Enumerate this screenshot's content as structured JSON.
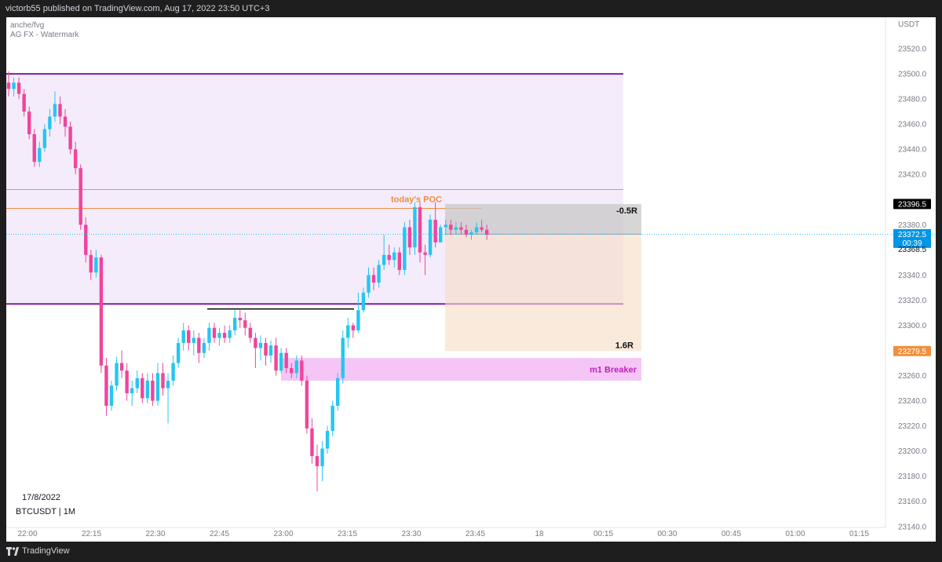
{
  "header": {
    "published_text": "victorb55 published on TradingView.com, Aug 17, 2022 23:50 UTC+3"
  },
  "footer": {
    "brand": "TradingView",
    "logo_icon": "tradingview-logo-icon"
  },
  "indicators": [
    "anche/fvg",
    "AG FX - Watermark"
  ],
  "watermark": {
    "date": "17/8/2022",
    "symbol": "BTCUSDT | 1M"
  },
  "colors": {
    "bull": "#26c6f0",
    "bear": "#f0449c",
    "zone_purple_line": "#7b1fa2",
    "poc": "#f08c3c",
    "breaker": "#e040fb",
    "price_badge": "#0096e6",
    "tp_badge": "#f0903c"
  },
  "chart_data": {
    "type": "candlestick",
    "symbol": "BTCUSDT",
    "interval": "1M",
    "currency": "USDT",
    "ylim": [
      23128,
      23545
    ],
    "x_ticks": [
      "22:00",
      "22:15",
      "22:30",
      "22:45",
      "23:00",
      "23:15",
      "23:30",
      "23:45",
      "18",
      "00:15",
      "00:30",
      "00:45",
      "01:00",
      "01:15"
    ],
    "y_ticks": [
      "23520.0",
      "23500.0",
      "23480.0",
      "23460.0",
      "23440.0",
      "23420.0",
      "23380.0",
      "23340.0",
      "23320.0",
      "23300.0",
      "23280.0",
      "23260.0",
      "23240.0",
      "23220.0",
      "23200.0",
      "23180.0",
      "23160.0",
      "23140.0"
    ],
    "price_labels": {
      "sl": "23396.5",
      "last": "23372.5",
      "countdown": "00:39",
      "low": "23368.5",
      "tp": "23279.5"
    },
    "annotations": {
      "poc_label": "today's POC",
      "risk_label": "-0.5R",
      "reward_label": "1.6R",
      "breaker_label": "m1 Breaker"
    },
    "levels": {
      "zone_top": 23500,
      "zone_mid": 23408,
      "zone_bottom": 23317,
      "poc": 23393,
      "black_line": 23313,
      "breaker_top": 23274,
      "breaker_bottom": 23256,
      "sl": 23396.5,
      "entry": 23372.5,
      "tp": 23279.5
    },
    "candles": [
      {
        "o": 23493,
        "h": 23502,
        "l": 23482,
        "c": 23488
      },
      {
        "o": 23488,
        "h": 23497,
        "l": 23482,
        "c": 23493
      },
      {
        "o": 23493,
        "h": 23497,
        "l": 23480,
        "c": 23484
      },
      {
        "o": 23484,
        "h": 23488,
        "l": 23466,
        "c": 23470
      },
      {
        "o": 23470,
        "h": 23474,
        "l": 23448,
        "c": 23452
      },
      {
        "o": 23452,
        "h": 23456,
        "l": 23426,
        "c": 23430
      },
      {
        "o": 23430,
        "h": 23446,
        "l": 23426,
        "c": 23441
      },
      {
        "o": 23441,
        "h": 23460,
        "l": 23438,
        "c": 23456
      },
      {
        "o": 23456,
        "h": 23472,
        "l": 23450,
        "c": 23466
      },
      {
        "o": 23466,
        "h": 23486,
        "l": 23462,
        "c": 23476
      },
      {
        "o": 23476,
        "h": 23482,
        "l": 23460,
        "c": 23466
      },
      {
        "o": 23466,
        "h": 23472,
        "l": 23450,
        "c": 23458
      },
      {
        "o": 23458,
        "h": 23462,
        "l": 23436,
        "c": 23440
      },
      {
        "o": 23440,
        "h": 23446,
        "l": 23420,
        "c": 23425
      },
      {
        "o": 23425,
        "h": 23428,
        "l": 23376,
        "c": 23380
      },
      {
        "o": 23380,
        "h": 23386,
        "l": 23350,
        "c": 23356
      },
      {
        "o": 23356,
        "h": 23360,
        "l": 23336,
        "c": 23342
      },
      {
        "o": 23342,
        "h": 23360,
        "l": 23338,
        "c": 23354
      },
      {
        "o": 23354,
        "h": 23356,
        "l": 23262,
        "c": 23268
      },
      {
        "o": 23268,
        "h": 23274,
        "l": 23228,
        "c": 23236
      },
      {
        "o": 23236,
        "h": 23256,
        "l": 23232,
        "c": 23252
      },
      {
        "o": 23252,
        "h": 23275,
        "l": 23248,
        "c": 23270
      },
      {
        "o": 23270,
        "h": 23280,
        "l": 23258,
        "c": 23264
      },
      {
        "o": 23264,
        "h": 23270,
        "l": 23240,
        "c": 23246
      },
      {
        "o": 23246,
        "h": 23256,
        "l": 23236,
        "c": 23250
      },
      {
        "o": 23250,
        "h": 23264,
        "l": 23246,
        "c": 23258
      },
      {
        "o": 23258,
        "h": 23262,
        "l": 23238,
        "c": 23242
      },
      {
        "o": 23242,
        "h": 23262,
        "l": 23238,
        "c": 23256
      },
      {
        "o": 23256,
        "h": 23262,
        "l": 23236,
        "c": 23240
      },
      {
        "o": 23240,
        "h": 23270,
        "l": 23236,
        "c": 23262
      },
      {
        "o": 23262,
        "h": 23270,
        "l": 23244,
        "c": 23250
      },
      {
        "o": 23250,
        "h": 23262,
        "l": 23222,
        "c": 23256
      },
      {
        "o": 23256,
        "h": 23276,
        "l": 23252,
        "c": 23270
      },
      {
        "o": 23270,
        "h": 23290,
        "l": 23266,
        "c": 23286
      },
      {
        "o": 23286,
        "h": 23302,
        "l": 23280,
        "c": 23296
      },
      {
        "o": 23296,
        "h": 23300,
        "l": 23280,
        "c": 23286
      },
      {
        "o": 23286,
        "h": 23296,
        "l": 23276,
        "c": 23290
      },
      {
        "o": 23290,
        "h": 23294,
        "l": 23270,
        "c": 23278
      },
      {
        "o": 23278,
        "h": 23290,
        "l": 23274,
        "c": 23286
      },
      {
        "o": 23286,
        "h": 23302,
        "l": 23280,
        "c": 23298
      },
      {
        "o": 23298,
        "h": 23302,
        "l": 23286,
        "c": 23290
      },
      {
        "o": 23290,
        "h": 23298,
        "l": 23284,
        "c": 23294
      },
      {
        "o": 23294,
        "h": 23300,
        "l": 23286,
        "c": 23290
      },
      {
        "o": 23290,
        "h": 23300,
        "l": 23286,
        "c": 23296
      },
      {
        "o": 23296,
        "h": 23312,
        "l": 23292,
        "c": 23306
      },
      {
        "o": 23306,
        "h": 23312,
        "l": 23298,
        "c": 23304
      },
      {
        "o": 23304,
        "h": 23310,
        "l": 23292,
        "c": 23298
      },
      {
        "o": 23298,
        "h": 23302,
        "l": 23286,
        "c": 23290
      },
      {
        "o": 23290,
        "h": 23294,
        "l": 23266,
        "c": 23282
      },
      {
        "o": 23282,
        "h": 23292,
        "l": 23272,
        "c": 23286
      },
      {
        "o": 23286,
        "h": 23290,
        "l": 23268,
        "c": 23276
      },
      {
        "o": 23276,
        "h": 23288,
        "l": 23270,
        "c": 23284
      },
      {
        "o": 23284,
        "h": 23290,
        "l": 23260,
        "c": 23264
      },
      {
        "o": 23264,
        "h": 23282,
        "l": 23262,
        "c": 23278
      },
      {
        "o": 23278,
        "h": 23282,
        "l": 23262,
        "c": 23266
      },
      {
        "o": 23266,
        "h": 23270,
        "l": 23258,
        "c": 23262
      },
      {
        "o": 23262,
        "h": 23276,
        "l": 23258,
        "c": 23272
      },
      {
        "o": 23272,
        "h": 23276,
        "l": 23252,
        "c": 23256
      },
      {
        "o": 23256,
        "h": 23260,
        "l": 23214,
        "c": 23218
      },
      {
        "o": 23218,
        "h": 23226,
        "l": 23190,
        "c": 23196
      },
      {
        "o": 23196,
        "h": 23205,
        "l": 23168,
        "c": 23188
      },
      {
        "o": 23188,
        "h": 23208,
        "l": 23176,
        "c": 23202
      },
      {
        "o": 23202,
        "h": 23220,
        "l": 23198,
        "c": 23216
      },
      {
        "o": 23216,
        "h": 23240,
        "l": 23212,
        "c": 23236
      },
      {
        "o": 23236,
        "h": 23262,
        "l": 23232,
        "c": 23258
      },
      {
        "o": 23258,
        "h": 23296,
        "l": 23254,
        "c": 23290
      },
      {
        "o": 23290,
        "h": 23306,
        "l": 23282,
        "c": 23300
      },
      {
        "o": 23300,
        "h": 23302,
        "l": 23290,
        "c": 23296
      },
      {
        "o": 23296,
        "h": 23326,
        "l": 23294,
        "c": 23312
      },
      {
        "o": 23312,
        "h": 23330,
        "l": 23310,
        "c": 23326
      },
      {
        "o": 23326,
        "h": 23346,
        "l": 23322,
        "c": 23340
      },
      {
        "o": 23340,
        "h": 23346,
        "l": 23328,
        "c": 23334
      },
      {
        "o": 23334,
        "h": 23352,
        "l": 23330,
        "c": 23348
      },
      {
        "o": 23348,
        "h": 23372,
        "l": 23344,
        "c": 23356
      },
      {
        "o": 23356,
        "h": 23364,
        "l": 23348,
        "c": 23352
      },
      {
        "o": 23352,
        "h": 23362,
        "l": 23346,
        "c": 23358
      },
      {
        "o": 23358,
        "h": 23362,
        "l": 23340,
        "c": 23344
      },
      {
        "o": 23344,
        "h": 23382,
        "l": 23340,
        "c": 23378
      },
      {
        "o": 23378,
        "h": 23384,
        "l": 23356,
        "c": 23362
      },
      {
        "o": 23362,
        "h": 23398,
        "l": 23356,
        "c": 23394
      },
      {
        "o": 23394,
        "h": 23398,
        "l": 23350,
        "c": 23358
      },
      {
        "o": 23358,
        "h": 23364,
        "l": 23340,
        "c": 23356
      },
      {
        "o": 23356,
        "h": 23388,
        "l": 23354,
        "c": 23384
      },
      {
        "o": 23384,
        "h": 23398,
        "l": 23362,
        "c": 23366
      },
      {
        "o": 23366,
        "h": 23380,
        "l": 23366,
        "c": 23378
      },
      {
        "o": 23378,
        "h": 23384,
        "l": 23372,
        "c": 23380
      },
      {
        "o": 23380,
        "h": 23384,
        "l": 23372,
        "c": 23376
      },
      {
        "o": 23376,
        "h": 23382,
        "l": 23372,
        "c": 23378
      },
      {
        "o": 23378,
        "h": 23382,
        "l": 23372,
        "c": 23376
      },
      {
        "o": 23376,
        "h": 23380,
        "l": 23370,
        "c": 23372
      },
      {
        "o": 23372,
        "h": 23376,
        "l": 23368,
        "c": 23374
      },
      {
        "o": 23374,
        "h": 23382,
        "l": 23372,
        "c": 23378
      },
      {
        "o": 23378,
        "h": 23384,
        "l": 23374,
        "c": 23376
      },
      {
        "o": 23376,
        "h": 23380,
        "l": 23368,
        "c": 23372
      }
    ]
  }
}
